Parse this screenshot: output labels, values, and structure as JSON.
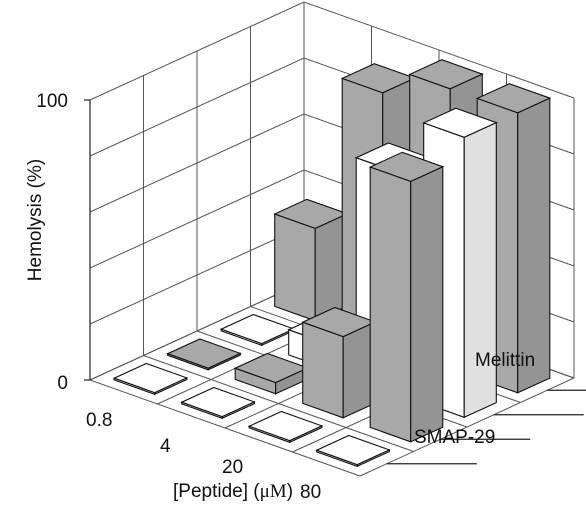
{
  "chart_data": {
    "type": "bar",
    "title": "",
    "xlabel": "[Peptide] (μM)",
    "xlabel_main": "[Peptide] (",
    "xlabel_unit": "μM",
    "xlabel_close": ")",
    "ylabel": "Hemolysis (%)",
    "zlim": [
      0,
      100
    ],
    "z_ticks": [
      "0",
      "100"
    ],
    "categories": [
      "0.8",
      "4",
      "20",
      "80"
    ],
    "series": [
      {
        "name": "",
        "color": "#ffffff",
        "values": [
          0,
          0,
          0,
          0
        ]
      },
      {
        "name": "SMAP-29",
        "color": "#a8a8a8",
        "values": [
          0,
          4,
          29,
          93
        ]
      },
      {
        "name": "Melittin",
        "color": "#ffffff",
        "values": [
          0,
          9,
          79,
          100
        ]
      },
      {
        "name": "",
        "color": "#a8a8a8",
        "values": [
          33,
          90,
          100,
          100
        ]
      }
    ],
    "grid": true
  }
}
